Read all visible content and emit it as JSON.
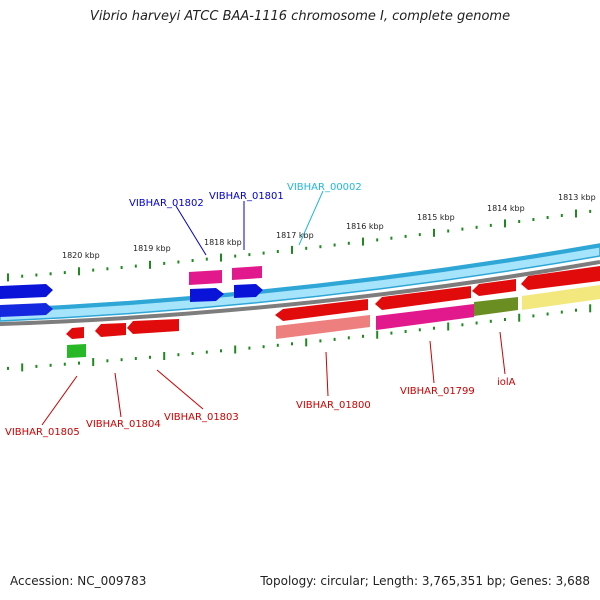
{
  "title": "Vibrio harveyi ATCC BAA-1116 chromosome I, complete genome",
  "footer": {
    "accession": "Accession: NC_009783",
    "summary": "Topology: circular; Length: 3,765,351 bp; Genes: 3,688"
  },
  "scale_labels": [
    "1820 kbp",
    "1819 kbp",
    "1818 kbp",
    "1817 kbp",
    "1816 kbp",
    "1815 kbp",
    "1814 kbp",
    "1813 kbp"
  ],
  "gene_labels": {
    "vibhar_01802": "VIBHAR_01802",
    "vibhar_01801": "VIBHAR_01801",
    "vibhar_00002": "VIBHAR_00002",
    "vibhar_01805": "VIBHAR_01805",
    "vibhar_01804": "VIBHAR_01804",
    "vibhar_01803": "VIBHAR_01803",
    "vibhar_01800": "VIBHAR_01800",
    "vibhar_01799": "VIBHAR_01799",
    "iola": "iolA"
  },
  "colors": {
    "forward_label": "#0000cc",
    "rna_label": "#22b8d8",
    "reverse_label": "#cc0000",
    "scale_tick": "#1e8a1e",
    "backbone_blue": "#38b8e6",
    "backbone_gray": "#8c8c8c"
  }
}
